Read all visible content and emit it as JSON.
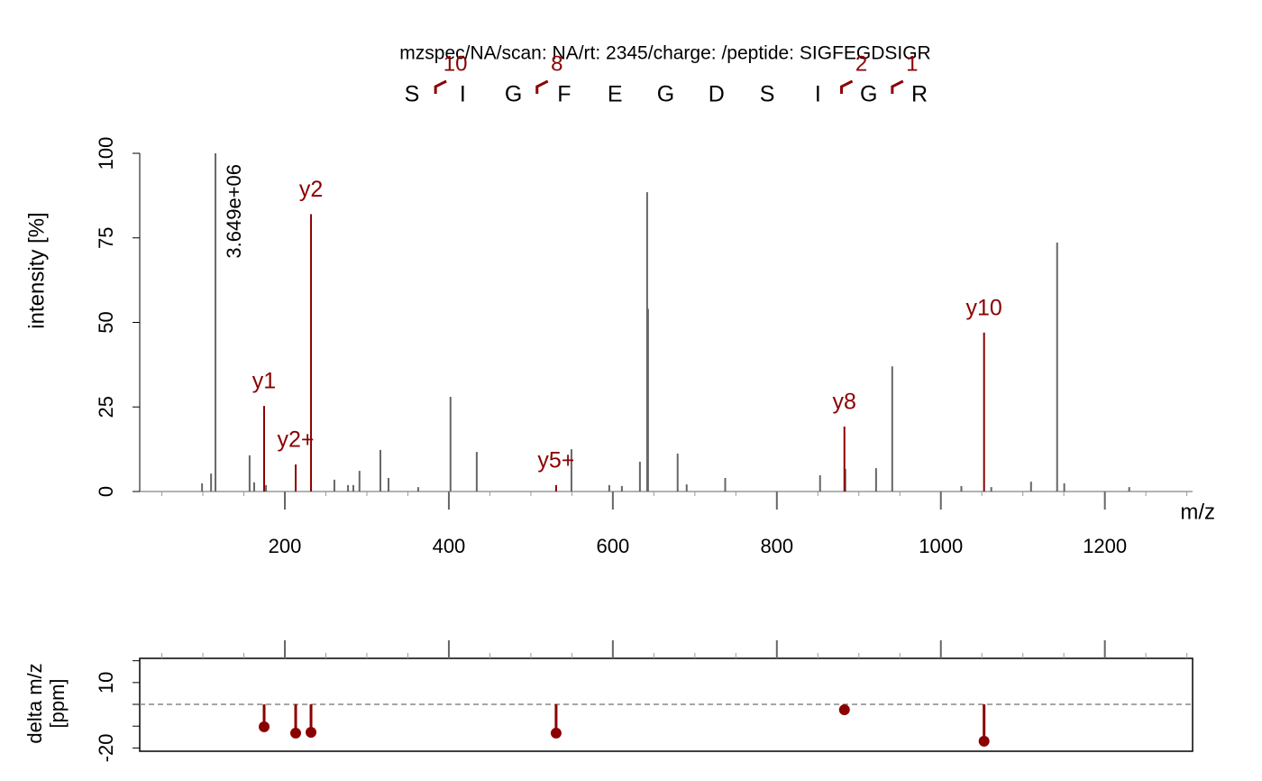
{
  "chart_data": [
    {
      "type": "spectrum",
      "title": "mzspec/NA/scan: NA/rt: 2345/charge: /peptide: SIGFEGDSIGR",
      "sequence": [
        "S",
        "I",
        "G",
        "F",
        "E",
        "G",
        "D",
        "S",
        "I",
        "G",
        "R"
      ],
      "fragment_labels": [
        "10",
        null,
        "8",
        null,
        null,
        null,
        null,
        null,
        "2",
        "1"
      ],
      "xlabel": "m/z",
      "ylabel": "intensity [%]",
      "xlim": [
        23,
        1307
      ],
      "ylim": [
        0,
        100
      ],
      "xticks": [
        200,
        400,
        600,
        800,
        1000,
        1200
      ],
      "minor_xticks": [
        50,
        100,
        150,
        250,
        300,
        350,
        450,
        500,
        550,
        650,
        700,
        750,
        850,
        900,
        950,
        1050,
        1100,
        1150,
        1250,
        1300
      ],
      "yticks": [
        0,
        25,
        50,
        75,
        100
      ],
      "peaks": {
        "color": "#666666",
        "mz": [
          99,
          110,
          115.4,
          157,
          162.6,
          177,
          260.4,
          277,
          283.5,
          291,
          316.5,
          326.4,
          362.6,
          402,
          434,
          549.5,
          595.6,
          611,
          633,
          641.8,
          642.9,
          679,
          690,
          737,
          852.7,
          883.5,
          921,
          940.7,
          1025,
          1061.5,
          1110,
          1141.8,
          1150.5,
          1229.7
        ],
        "intensity": [
          2.4,
          5.3,
          100,
          10.7,
          2.7,
          1.9,
          3.5,
          1.9,
          1.9,
          6.1,
          12.3,
          4,
          1.3,
          28,
          11.7,
          12.5,
          1.9,
          1.6,
          8.8,
          88.5,
          54,
          11.2,
          2.1,
          4,
          4.8,
          6.7,
          6.9,
          37,
          1.6,
          1.3,
          2.9,
          73.6,
          2.4,
          1.3
        ]
      },
      "annotation": "3.649e+06",
      "annotated": {
        "color": "#8b0000",
        "mz": [
          174.7,
          213.2,
          231.9,
          530.8,
          882.4,
          1052.7
        ],
        "intensity": [
          25.3,
          8,
          82,
          1.9,
          19.2,
          47
        ],
        "labels": [
          "y1",
          "y2+",
          "y2",
          "y5+",
          "y8",
          "y10"
        ]
      }
    },
    {
      "type": "stem",
      "ylabel": [
        "delta m/z",
        "[ppm]"
      ],
      "xlim": [
        23,
        1307
      ],
      "ylim": [
        -21.5,
        21.1
      ],
      "xticks": [
        200,
        400,
        600,
        800,
        1000,
        1200
      ],
      "minor_xticks": [
        50,
        100,
        150,
        250,
        300,
        350,
        450,
        500,
        550,
        650,
        700,
        750,
        850,
        900,
        950,
        1050,
        1100,
        1150,
        1250,
        1300
      ],
      "yticks": [
        -20,
        10
      ],
      "minor_yticks": [
        -10,
        0,
        20
      ],
      "reference_line": 0,
      "color": "#8b0000",
      "x": [
        174.7,
        213.2,
        231.9,
        530.8,
        882.4,
        1052.7
      ],
      "values": [
        -10.3,
        -13.2,
        -12.8,
        -13.2,
        -2.5,
        -16.9
      ]
    }
  ]
}
